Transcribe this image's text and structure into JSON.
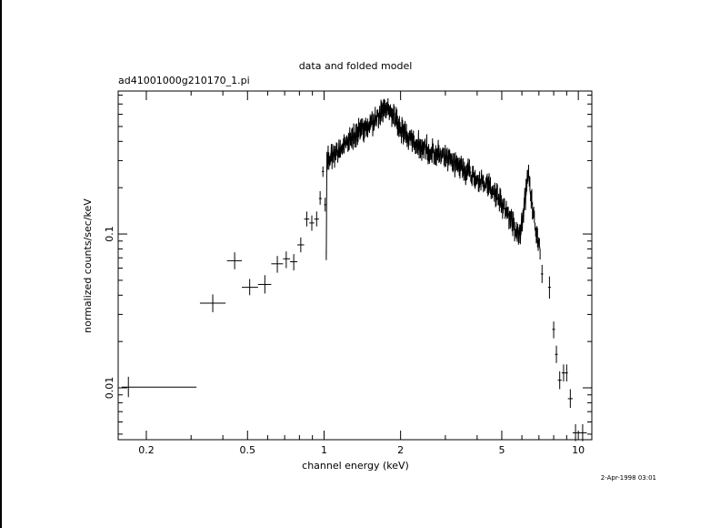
{
  "chart_data": {
    "type": "scatter",
    "title": "data and folded model",
    "subtitle": "ad41001000g210170_1.pi",
    "xlabel": "channel energy (keV)",
    "ylabel": "normalized counts/sec/keV",
    "xscale": "log",
    "yscale": "log",
    "xlim": [
      0.155,
      11.3
    ],
    "ylim": [
      0.0046,
      0.85
    ],
    "x_ticks": [
      {
        "value": 0.2,
        "label": "0.2"
      },
      {
        "value": 0.5,
        "label": "0.5"
      },
      {
        "value": 1,
        "label": "1"
      },
      {
        "value": 2,
        "label": "2"
      },
      {
        "value": 5,
        "label": "5"
      },
      {
        "value": 10,
        "label": "10"
      }
    ],
    "y_ticks": [
      {
        "value": 0.01,
        "label": "0.01"
      },
      {
        "value": 0.1,
        "label": "0.1"
      }
    ],
    "grid": false,
    "series": [
      {
        "style": "error-crosses",
        "points": [
          {
            "x": 0.17,
            "y": 0.0101,
            "xlo": 0.16,
            "xhi": 0.315,
            "ylo": 0.0087,
            "yhi": 0.0118
          },
          {
            "x": 0.365,
            "y": 0.0355,
            "xlo": 0.325,
            "xhi": 0.41,
            "ylo": 0.031,
            "yhi": 0.0405
          },
          {
            "x": 0.445,
            "y": 0.067,
            "xlo": 0.415,
            "xhi": 0.475,
            "ylo": 0.059,
            "yhi": 0.076
          },
          {
            "x": 0.51,
            "y": 0.045,
            "xlo": 0.475,
            "xhi": 0.55,
            "ylo": 0.04,
            "yhi": 0.051
          },
          {
            "x": 0.585,
            "y": 0.047,
            "xlo": 0.55,
            "xhi": 0.62,
            "ylo": 0.041,
            "yhi": 0.054
          },
          {
            "x": 0.655,
            "y": 0.064,
            "xlo": 0.62,
            "xhi": 0.69,
            "ylo": 0.056,
            "yhi": 0.072
          },
          {
            "x": 0.71,
            "y": 0.069,
            "xlo": 0.69,
            "xhi": 0.735,
            "ylo": 0.06,
            "yhi": 0.077
          },
          {
            "x": 0.76,
            "y": 0.066,
            "xlo": 0.735,
            "xhi": 0.785,
            "ylo": 0.058,
            "yhi": 0.074
          },
          {
            "x": 0.81,
            "y": 0.085,
            "xlo": 0.785,
            "xhi": 0.835,
            "ylo": 0.076,
            "yhi": 0.095
          },
          {
            "x": 0.855,
            "y": 0.125,
            "xlo": 0.835,
            "xhi": 0.875,
            "ylo": 0.112,
            "yhi": 0.14
          },
          {
            "x": 0.895,
            "y": 0.118,
            "xlo": 0.875,
            "xhi": 0.915,
            "ylo": 0.105,
            "yhi": 0.132
          },
          {
            "x": 0.935,
            "y": 0.125,
            "xlo": 0.915,
            "xhi": 0.955,
            "ylo": 0.112,
            "yhi": 0.14
          },
          {
            "x": 0.965,
            "y": 0.17,
            "xlo": 0.955,
            "xhi": 0.98,
            "ylo": 0.155,
            "yhi": 0.19
          },
          {
            "x": 0.99,
            "y": 0.255,
            "xlo": 0.98,
            "xhi": 1.0,
            "ylo": 0.235,
            "yhi": 0.275
          },
          {
            "x": 1.01,
            "y": 0.155,
            "xlo": 1.0,
            "xhi": 1.02,
            "ylo": 0.14,
            "yhi": 0.172
          },
          {
            "x": 7.2,
            "y": 0.055,
            "xlo": 7.12,
            "xhi": 7.28,
            "ylo": 0.048,
            "yhi": 0.063
          },
          {
            "x": 7.7,
            "y": 0.045,
            "xlo": 7.6,
            "xhi": 7.8,
            "ylo": 0.038,
            "yhi": 0.053
          },
          {
            "x": 8.0,
            "y": 0.024,
            "xlo": 7.9,
            "xhi": 8.1,
            "ylo": 0.021,
            "yhi": 0.027
          },
          {
            "x": 8.2,
            "y": 0.0165,
            "xlo": 8.1,
            "xhi": 8.3,
            "ylo": 0.0145,
            "yhi": 0.0188
          },
          {
            "x": 8.45,
            "y": 0.0112,
            "xlo": 8.3,
            "xhi": 8.6,
            "ylo": 0.0098,
            "yhi": 0.0128
          },
          {
            "x": 8.75,
            "y": 0.0125,
            "xlo": 8.6,
            "xhi": 8.9,
            "ylo": 0.011,
            "yhi": 0.0142
          },
          {
            "x": 9.0,
            "y": 0.0125,
            "xlo": 8.9,
            "xhi": 9.1,
            "ylo": 0.011,
            "yhi": 0.0142
          },
          {
            "x": 9.3,
            "y": 0.0085,
            "xlo": 9.1,
            "xhi": 9.5,
            "ylo": 0.0074,
            "yhi": 0.0098
          },
          {
            "x": 9.75,
            "y": 0.0051,
            "xlo": 9.5,
            "xhi": 10.0,
            "ylo": 0.0045,
            "yhi": 0.0058
          },
          {
            "x": 10.4,
            "y": 0.0051,
            "xlo": 10.0,
            "xhi": 10.8,
            "ylo": 0.0045,
            "yhi": 0.0058
          }
        ]
      },
      {
        "style": "dense-spectrum",
        "x_range": [
          1.02,
          7.1
        ],
        "envelope": [
          {
            "x": 1.02,
            "y": 0.3
          },
          {
            "x": 1.2,
            "y": 0.38
          },
          {
            "x": 1.4,
            "y": 0.47
          },
          {
            "x": 1.6,
            "y": 0.55
          },
          {
            "x": 1.75,
            "y": 0.66
          },
          {
            "x": 1.85,
            "y": 0.62
          },
          {
            "x": 2.0,
            "y": 0.48
          },
          {
            "x": 2.3,
            "y": 0.38
          },
          {
            "x": 2.6,
            "y": 0.35
          },
          {
            "x": 3.0,
            "y": 0.31
          },
          {
            "x": 3.5,
            "y": 0.27
          },
          {
            "x": 4.0,
            "y": 0.23
          },
          {
            "x": 4.5,
            "y": 0.2
          },
          {
            "x": 5.0,
            "y": 0.16
          },
          {
            "x": 5.5,
            "y": 0.12
          },
          {
            "x": 5.9,
            "y": 0.1
          },
          {
            "x": 6.2,
            "y": 0.18
          },
          {
            "x": 6.35,
            "y": 0.25
          },
          {
            "x": 6.5,
            "y": 0.18
          },
          {
            "x": 6.8,
            "y": 0.11
          },
          {
            "x": 7.1,
            "y": 0.075
          }
        ]
      }
    ]
  },
  "footer": {
    "timestamp": "2-Apr-1998 03:01"
  }
}
